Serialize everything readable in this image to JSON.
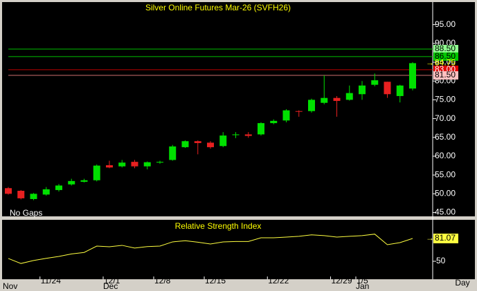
{
  "chart_data": [
    {
      "type": "candlestick",
      "title": "Silver Online Futures Mar-26 (SVFH26)",
      "note": "No Gaps",
      "x_label": "Day",
      "categories": [
        null,
        null,
        null,
        "11/24",
        null,
        null,
        null,
        null,
        "12/1",
        null,
        null,
        null,
        "12/8",
        null,
        null,
        null,
        "12/15",
        null,
        null,
        null,
        null,
        "12/22",
        null,
        null,
        null,
        null,
        "12/29",
        null,
        "1/5",
        null,
        null,
        null,
        null
      ],
      "months": [
        "Nov",
        null,
        null,
        null,
        null,
        null,
        null,
        null,
        "Dec",
        null,
        null,
        null,
        null,
        null,
        null,
        null,
        null,
        null,
        null,
        null,
        null,
        null,
        null,
        null,
        null,
        null,
        null,
        null,
        "Jan",
        null,
        null,
        null,
        null
      ],
      "open": [
        51.5,
        50.8,
        48.6,
        49.8,
        51,
        52.5,
        53.2,
        53.6,
        57.6,
        57.3,
        58.5,
        57.3,
        58.3,
        59,
        62.4,
        64,
        63.6,
        62.7,
        65.6,
        65.8,
        65.8,
        68.8,
        69.5,
        72,
        72,
        74.2,
        75.5,
        75,
        76.5,
        79,
        79.8,
        76,
        78
      ],
      "high": [
        51.8,
        51,
        50.2,
        51.8,
        52.6,
        54,
        54,
        57.8,
        58.8,
        59,
        59,
        58.6,
        58.8,
        63,
        64.2,
        64.2,
        64,
        66.4,
        66.4,
        66.4,
        69,
        69.8,
        72.5,
        72.2,
        75.3,
        81.5,
        76,
        78.8,
        80,
        82,
        79.8,
        79,
        85
      ],
      "low": [
        49.8,
        48.5,
        48.3,
        49.5,
        50.6,
        52.2,
        53,
        53.3,
        56.8,
        57,
        56.8,
        56.5,
        58,
        58.8,
        62.2,
        60.5,
        62,
        62.4,
        64.8,
        64.9,
        65.5,
        68.5,
        69,
        70.5,
        71.6,
        73.8,
        70.5,
        74.8,
        75,
        78.6,
        75.5,
        74.3,
        77.5
      ],
      "close": [
        50,
        48.8,
        50,
        51.2,
        52.2,
        53.4,
        53.6,
        57.5,
        57,
        58.3,
        57.3,
        58.4,
        58.5,
        62.6,
        64,
        63.5,
        62.4,
        65.5,
        65.8,
        65.4,
        68.8,
        69.4,
        72.2,
        71.9,
        75,
        75.5,
        74.7,
        76.8,
        78.8,
        80.2,
        76.5,
        78.8,
        84.75
      ],
      "up_color": "#00e000",
      "down_color": "#e82020",
      "last_color": "#ffff00",
      "ylim": [
        44,
        101
      ],
      "yticks": [
        {
          "value": 95,
          "label": "95.00"
        },
        {
          "value": 90,
          "label": "90.00"
        },
        {
          "value": 85,
          "label": "85.00"
        },
        {
          "value": 80,
          "label": "80.00"
        },
        {
          "value": 75,
          "label": "75.00"
        },
        {
          "value": 70,
          "label": "70.00"
        },
        {
          "value": 65,
          "label": "65.00"
        },
        {
          "value": 60,
          "label": "60.00"
        },
        {
          "value": 55,
          "label": "55.00"
        },
        {
          "value": 50,
          "label": "50.00"
        },
        {
          "value": 45,
          "label": "45.00"
        }
      ],
      "levels": [
        {
          "value": 88.5,
          "label": "88.50",
          "color": "#00c000",
          "label_bg": "#90ff90"
        },
        {
          "value": 86.5,
          "label": "86.50",
          "color": "#00c000",
          "label_bg": "#00c800"
        },
        {
          "value": 83,
          "label": "83.00",
          "color": "#c00000",
          "label_bg": "#e00000"
        },
        {
          "value": 81.5,
          "label": "81.50",
          "color": "#d07070",
          "label_bg": "#ffc0c0"
        }
      ]
    },
    {
      "type": "line",
      "title": "Relative Strength Index",
      "values": [
        53.8,
        47,
        51,
        54,
        56.6,
        60,
        62,
        70.7,
        69.8,
        71.7,
        68,
        70,
        70.7,
        76.4,
        78,
        76,
        73.5,
        76.4,
        77,
        77,
        82,
        82,
        83,
        84,
        86,
        85,
        83,
        84,
        85,
        87,
        72.6,
        75.4,
        81.07
      ],
      "color": "#ffff40",
      "ylim": [
        25.5,
        106.5
      ],
      "yticks": [
        50
      ]
    }
  ]
}
